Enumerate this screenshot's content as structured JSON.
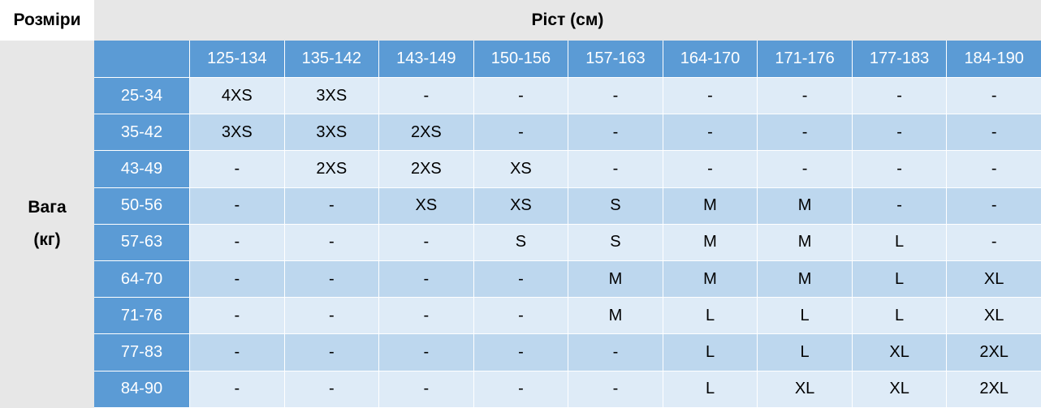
{
  "corner_label": "Розміри",
  "height_title": "Ріст (см)",
  "weight_title_line1": "Вага",
  "weight_title_line2": "(кг)",
  "colors": {
    "header_blue": "#5b9bd5",
    "row_light": "#deebf7",
    "row_dark": "#bdd7ee",
    "title_gray": "#e7e7e7"
  },
  "height_ranges": [
    "125-134",
    "135-142",
    "143-149",
    "150-156",
    "157-163",
    "164-170",
    "171-176",
    "177-183",
    "184-190"
  ],
  "rows": [
    {
      "weight": "25-34",
      "sizes": [
        "4XS",
        "3XS",
        "-",
        "-",
        "-",
        "-",
        "-",
        "-",
        "-"
      ]
    },
    {
      "weight": "35-42",
      "sizes": [
        "3XS",
        "3XS",
        "2XS",
        "-",
        "-",
        "-",
        "-",
        "-",
        "-"
      ]
    },
    {
      "weight": "43-49",
      "sizes": [
        "-",
        "2XS",
        "2XS",
        "XS",
        "-",
        "-",
        "-",
        "-",
        "-"
      ]
    },
    {
      "weight": "50-56",
      "sizes": [
        "-",
        "-",
        "XS",
        "XS",
        "S",
        "M",
        "M",
        "-",
        "-"
      ]
    },
    {
      "weight": "57-63",
      "sizes": [
        "-",
        "-",
        "-",
        "S",
        "S",
        "M",
        "M",
        "L",
        "-"
      ]
    },
    {
      "weight": "64-70",
      "sizes": [
        "-",
        "-",
        "-",
        "-",
        "M",
        "M",
        "M",
        "L",
        "XL"
      ]
    },
    {
      "weight": "71-76",
      "sizes": [
        "-",
        "-",
        "-",
        "-",
        "M",
        "L",
        "L",
        "L",
        "XL"
      ]
    },
    {
      "weight": "77-83",
      "sizes": [
        "-",
        "-",
        "-",
        "-",
        "-",
        "L",
        "L",
        "XL",
        "2XL"
      ]
    },
    {
      "weight": "84-90",
      "sizes": [
        "-",
        "-",
        "-",
        "-",
        "-",
        "L",
        "XL",
        "XL",
        "2XL"
      ]
    }
  ]
}
